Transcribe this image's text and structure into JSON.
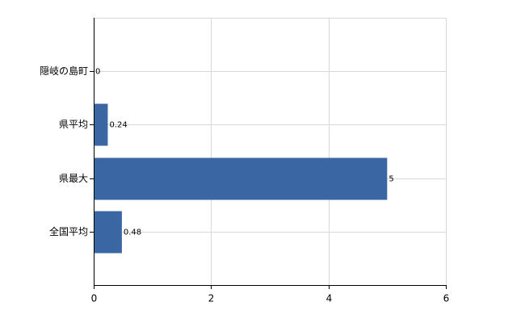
{
  "chart_data": {
    "type": "barh",
    "categories": [
      "隠岐の島町",
      "県平均",
      "県最大",
      "全国平均"
    ],
    "values": [
      0,
      0.24,
      5,
      0.48
    ],
    "color": "#3a67a4",
    "xlim": [
      0,
      6
    ],
    "xticks": [
      0,
      2,
      4,
      6
    ],
    "grid": true
  }
}
